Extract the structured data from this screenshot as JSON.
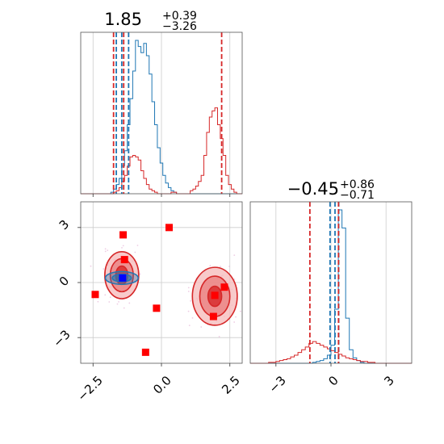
{
  "chart_data": [
    {
      "type": "step-histogram",
      "panel": "marginal-x",
      "title_main": "1.85",
      "title_sup": "+0.39",
      "title_sub": "−3.26",
      "xlim": [
        -2.95,
        2.95
      ],
      "grid": true,
      "bin_edges_start": -2.95,
      "bin_width": 0.1,
      "series": [
        {
          "color": "#1f77b4",
          "counts": [
            0,
            0,
            0,
            0,
            0,
            0,
            0,
            0,
            0,
            0,
            0,
            1,
            3,
            6,
            10,
            18,
            28,
            45,
            62,
            80,
            100,
            96,
            92,
            98,
            90,
            78,
            60,
            45,
            30,
            20,
            12,
            7,
            4,
            2,
            1,
            0,
            0,
            0,
            0,
            0,
            0,
            0,
            0,
            0,
            0,
            0,
            0,
            0,
            0,
            0,
            0,
            0,
            0,
            0,
            0,
            0,
            0,
            0,
            0
          ]
        },
        {
          "color": "#d62728",
          "counts": [
            0,
            0,
            0,
            0,
            0,
            0,
            0,
            0,
            0,
            0,
            0,
            0,
            1,
            2,
            4,
            8,
            12,
            18,
            24,
            25,
            24,
            22,
            15,
            10,
            6,
            3,
            2,
            1,
            0,
            0,
            0,
            0,
            0,
            1,
            1,
            0,
            0,
            0,
            0,
            0,
            2,
            3,
            5,
            8,
            12,
            25,
            40,
            50,
            54,
            56,
            45,
            36,
            25,
            12,
            6,
            3,
            1,
            0,
            0
          ]
        }
      ],
      "vlines": [
        {
          "x": -1.65,
          "color": "#1f77b4"
        },
        {
          "x": -1.45,
          "color": "#1f77b4"
        },
        {
          "x": -1.2,
          "color": "#1f77b4"
        },
        {
          "x": -1.75,
          "color": "#d62728"
        },
        {
          "x": -1.38,
          "color": "#d62728"
        },
        {
          "x": 2.2,
          "color": "#d62728"
        }
      ]
    },
    {
      "type": "contour-scatter",
      "panel": "joint",
      "xlim": [
        -2.95,
        2.95
      ],
      "ylim": [
        -4.4,
        4.4
      ],
      "xticks": [
        -2.5,
        0.0,
        2.5
      ],
      "xtick_labels": [
        "−2.5",
        "0.0",
        "2.5"
      ],
      "yticks": [
        3,
        0,
        -3
      ],
      "ytick_labels": [
        "3",
        "0",
        "−3"
      ],
      "grid": true,
      "red_contours": [
        {
          "cx": -1.45,
          "cy": 0.4,
          "levels": [
            [
              0.62,
              1.28
            ],
            [
              0.42,
              0.9
            ],
            [
              0.22,
              0.5
            ]
          ]
        },
        {
          "cx": 1.95,
          "cy": -0.75,
          "levels": [
            [
              0.82,
              1.58
            ],
            [
              0.55,
              1.1
            ],
            [
              0.25,
              0.55
            ]
          ]
        }
      ],
      "blue_contours": [
        {
          "cx": -1.45,
          "cy": 0.25,
          "levels": [
            [
              0.6,
              0.35
            ],
            [
              0.35,
              0.2
            ],
            [
              0.12,
              0.08
            ]
          ]
        }
      ],
      "red_points": [
        {
          "x": -1.4,
          "y": 2.6
        },
        {
          "x": 0.28,
          "y": 3.0
        },
        {
          "x": -1.35,
          "y": 1.25
        },
        {
          "x": -2.42,
          "y": -0.65
        },
        {
          "x": -0.18,
          "y": -1.4
        },
        {
          "x": 2.3,
          "y": -0.25
        },
        {
          "x": 1.95,
          "y": -0.7
        },
        {
          "x": 1.9,
          "y": -1.85
        },
        {
          "x": -0.58,
          "y": -3.8
        }
      ],
      "blue_points": [
        {
          "x": -1.42,
          "y": 0.25
        }
      ],
      "colors": {
        "red_line": "#d62728",
        "red_fill_outer": "#f5b8b8",
        "red_fill_mid": "#ea7b7b",
        "red_fill_inner": "#d62728",
        "blue_line": "#1f77b4",
        "blue_fill": "#1f77b4",
        "scatter_faint": "#e7b8d8"
      }
    },
    {
      "type": "step-histogram",
      "panel": "marginal-y",
      "title_main": "−0.45",
      "title_sup": "+0.86",
      "title_sub": "−0.71",
      "xlim": [
        -4.4,
        4.4
      ],
      "xticks": [
        -3,
        0,
        3
      ],
      "xtick_labels": [
        "−3",
        "0",
        "3"
      ],
      "grid": true,
      "bin_edges_start": -4.4,
      "bin_width": 0.2,
      "series": [
        {
          "color": "#1f77b4",
          "counts": [
            0,
            0,
            0,
            0,
            0,
            0,
            0,
            0,
            0,
            0,
            0,
            0,
            0,
            0,
            0,
            0,
            0,
            1,
            2,
            3,
            5,
            9,
            20,
            60,
            170,
            150,
            50,
            15,
            6,
            3,
            1,
            0,
            0,
            0,
            0,
            0,
            0,
            0,
            0,
            0,
            0,
            0,
            0,
            0
          ]
        },
        {
          "color": "#d62728",
          "counts": [
            0,
            0,
            0,
            0,
            0,
            1,
            1,
            2,
            3,
            4,
            5,
            7,
            9,
            12,
            15,
            18,
            22,
            24,
            22,
            20,
            18,
            16,
            14,
            12,
            10,
            8,
            6,
            5,
            4,
            3,
            2,
            2,
            1,
            1,
            0,
            0,
            0,
            0,
            0,
            0,
            0,
            0,
            0,
            0
          ]
        }
      ],
      "vlines": [
        {
          "x": -0.05,
          "color": "#1f77b4"
        },
        {
          "x": 0.22,
          "color": "#1f77b4"
        },
        {
          "x": 0.42,
          "color": "#1f77b4"
        },
        {
          "x": -1.15,
          "color": "#d62728"
        },
        {
          "x": 0.41,
          "color": "#d62728"
        }
      ]
    }
  ]
}
